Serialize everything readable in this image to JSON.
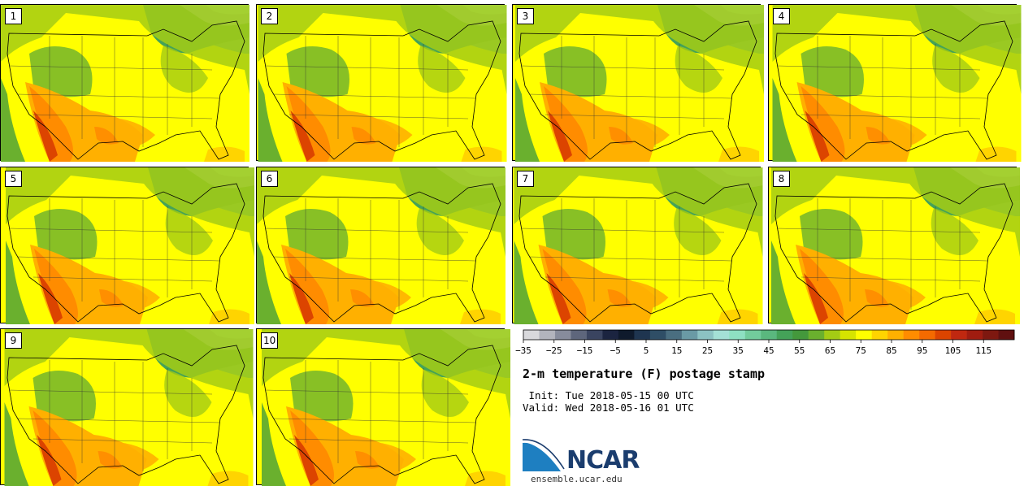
{
  "panels": [
    {
      "label": "1"
    },
    {
      "label": "2"
    },
    {
      "label": "3"
    },
    {
      "label": "4"
    },
    {
      "label": "5"
    },
    {
      "label": "6"
    },
    {
      "label": "7"
    },
    {
      "label": "8"
    },
    {
      "label": "9"
    },
    {
      "label": "10"
    }
  ],
  "colorbar": {
    "min": -35,
    "max": 120,
    "step": 5,
    "tick_labels": [
      "−35",
      "−25",
      "−15",
      "−5",
      "5",
      "15",
      "25",
      "35",
      "45",
      "55",
      "65",
      "75",
      "85",
      "95",
      "105",
      "115"
    ],
    "colors": [
      "#d9d9dc",
      "#b2b4bd",
      "#878c9c",
      "#5e667c",
      "#3a4460",
      "#1b2440",
      "#0f1a2c",
      "#1f3550",
      "#2f4e66",
      "#4a6e80",
      "#6a9aa5",
      "#8cc2c3",
      "#a4e0d6",
      "#8ee0c2",
      "#72cc9c",
      "#5ab87e",
      "#44a258",
      "#44983c",
      "#6ab02e",
      "#a4cc14",
      "#d6e400",
      "#ffff00",
      "#ffd400",
      "#ffb000",
      "#ff8c00",
      "#f46a00",
      "#dc4400",
      "#c02810",
      "#a01c10",
      "#7e1810",
      "#601010"
    ]
  },
  "title": "2-m temperature (F) postage stamp",
  "init_text": " Init: Tue 2018-05-15 00 UTC",
  "valid_text": "Valid: Wed 2018-05-16 01 UTC",
  "logo": {
    "name": "NCAR",
    "url": "ensemble.ucar.edu"
  }
}
